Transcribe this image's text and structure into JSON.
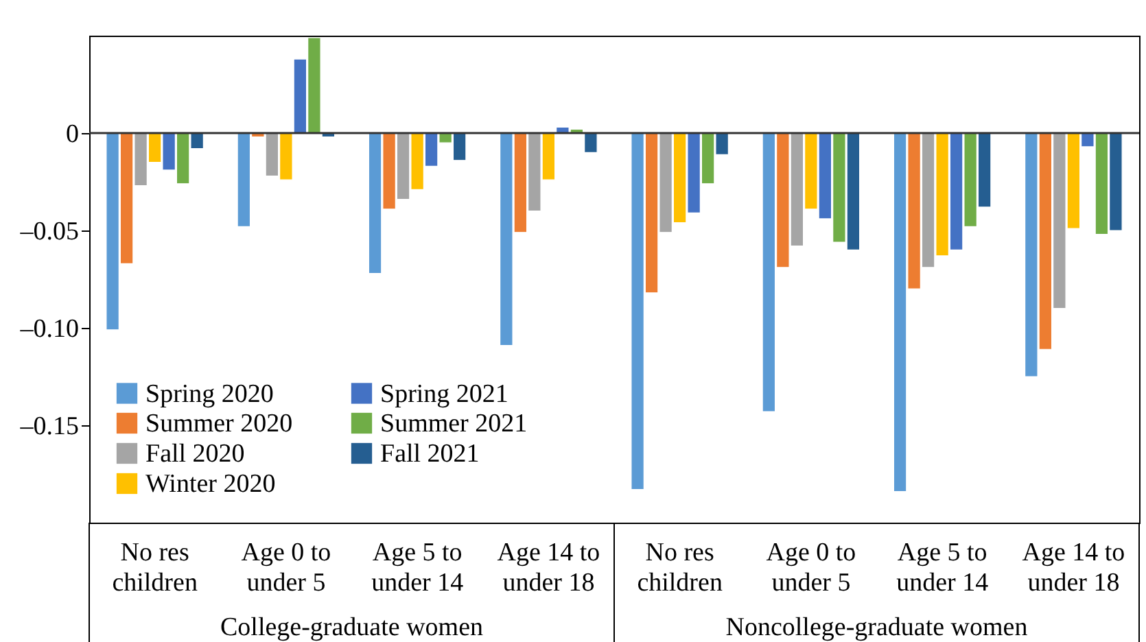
{
  "chart_data": {
    "type": "bar",
    "categories": [
      "No res children",
      "Age 0 to under 5",
      "Age 5 to under 14",
      "Age 14 to under 18",
      "No res children",
      "Age 0 to under 5",
      "Age 5 to under 14",
      "Age 14 to under 18"
    ],
    "series": [
      {
        "name": "Spring 2020",
        "color": "#5b9bd5",
        "values": [
          -0.101,
          -0.048,
          -0.072,
          -0.109,
          -0.183,
          -0.143,
          -0.184,
          -0.125
        ]
      },
      {
        "name": "Summer 2020",
        "color": "#ed7d31",
        "values": [
          -0.067,
          -0.002,
          -0.039,
          -0.051,
          -0.082,
          -0.069,
          -0.08,
          -0.111
        ]
      },
      {
        "name": "Fall 2020",
        "color": "#a5a5a5",
        "values": [
          -0.027,
          -0.022,
          -0.034,
          -0.04,
          -0.051,
          -0.058,
          -0.069,
          -0.09
        ]
      },
      {
        "name": "Winter 2020",
        "color": "#ffc000",
        "values": [
          -0.015,
          -0.024,
          -0.029,
          -0.024,
          -0.046,
          -0.039,
          -0.063,
          -0.049
        ]
      },
      {
        "name": "Spring 2021",
        "color": "#4472c4",
        "values": [
          -0.019,
          0.038,
          -0.017,
          0.003,
          -0.041,
          -0.044,
          -0.06,
          -0.007
        ]
      },
      {
        "name": "Summer 2021",
        "color": "#70ad47",
        "values": [
          -0.026,
          0.049,
          -0.005,
          0.002,
          -0.026,
          -0.056,
          -0.048,
          -0.052
        ]
      },
      {
        "name": "Fall 2021",
        "color": "#255e91",
        "values": [
          -0.008,
          -0.002,
          -0.014,
          -0.01,
          -0.011,
          -0.06,
          -0.038,
          -0.05
        ]
      }
    ],
    "ylim": [
      -0.2,
      0.05
    ],
    "yticks": [
      {
        "value": -0.15,
        "label": "–0.15"
      },
      {
        "value": -0.1,
        "label": "–0.10"
      },
      {
        "value": -0.05,
        "label": "–0.05"
      },
      0
    ],
    "ref_lines": [
      {
        "axis": "y",
        "value": 0,
        "color": "#333333"
      }
    ],
    "annotations": [
      "College-graduate women",
      "Noncollege-graduate women"
    ],
    "legend": "bottom left"
  }
}
